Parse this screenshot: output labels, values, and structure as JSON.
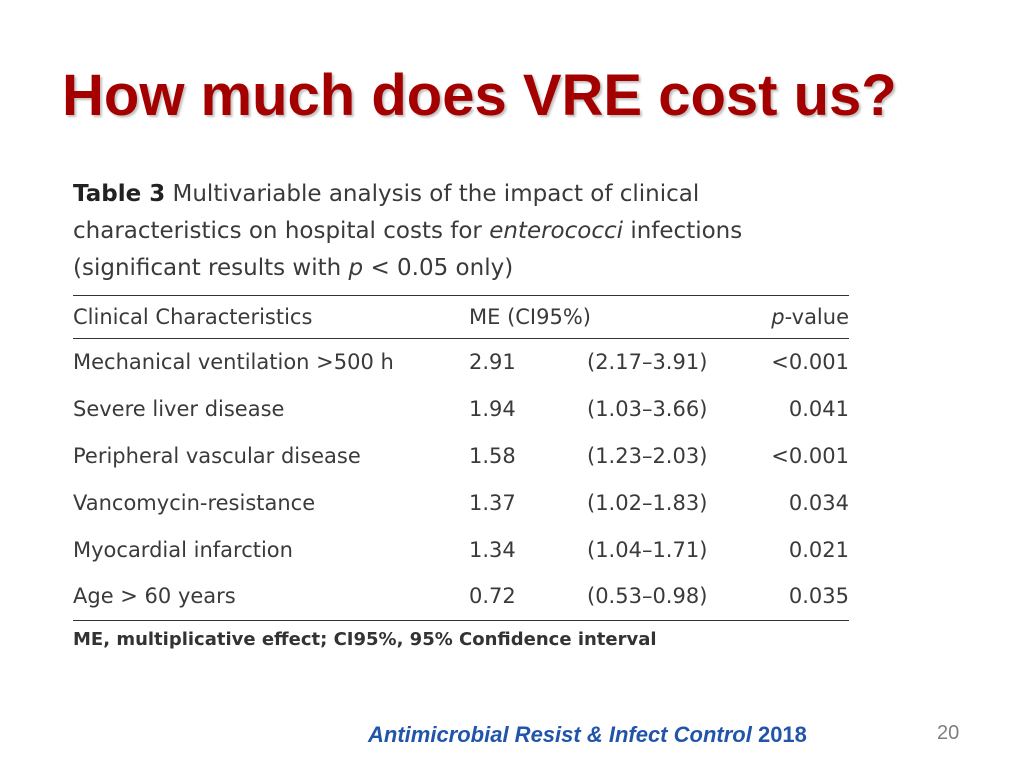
{
  "slide": {
    "title": "How much does VRE cost us?",
    "number": "20",
    "citation": {
      "source": "Antimicrobial Resist & Infect Control",
      "year": "2018"
    }
  },
  "table": {
    "label": "Table 3",
    "caption_part1": "Multivariable analysis of the impact of clinical characteristics on hospital costs for",
    "caption_italic": "enterococci",
    "caption_part2": "infections (significant results with",
    "caption_p": "p",
    "caption_part3": "< 0.05 only)",
    "headers": {
      "characteristic": "Clinical Characteristics",
      "me": "ME (CI95%)",
      "p_italic": "p",
      "p_rest": "-value"
    },
    "rows": [
      {
        "characteristic": "Mechanical ventilation >500 h",
        "me": "2.91",
        "ci": "(2.17–3.91)",
        "p": "<0.001"
      },
      {
        "characteristic": "Severe liver disease",
        "me": "1.94",
        "ci": "(1.03–3.66)",
        "p": "0.041"
      },
      {
        "characteristic": "Peripheral vascular disease",
        "me": "1.58",
        "ci": "(1.23–2.03)",
        "p": "<0.001"
      },
      {
        "characteristic": "Vancomycin-resistance",
        "me": "1.37",
        "ci": "(1.02–1.83)",
        "p": "0.034"
      },
      {
        "characteristic": "Myocardial infarction",
        "me": "1.34",
        "ci": "(1.04–1.71)",
        "p": "0.021"
      },
      {
        "characteristic": "Age > 60 years",
        "me": "0.72",
        "ci": "(0.53–0.98)",
        "p": "0.035"
      }
    ],
    "footnote": "ME, multiplicative effect; CI95%, 95% Confidence interval"
  },
  "colors": {
    "title": "#a50000",
    "citation": "#2255aa",
    "slide_number": "#7f7f7f"
  }
}
